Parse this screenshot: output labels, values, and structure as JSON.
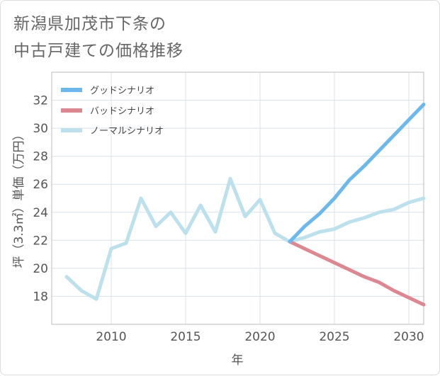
{
  "title": "新潟県加茂市下条の\n中古戸建ての価格推移",
  "chart_data": {
    "type": "line",
    "xlabel": "年",
    "ylabel": "坪（3.3㎡）単価（万円）",
    "xlim": [
      2006,
      2031
    ],
    "ylim": [
      16,
      34
    ],
    "x_ticks": [
      2010,
      2015,
      2020,
      2025,
      2030
    ],
    "y_ticks": [
      18,
      20,
      22,
      24,
      26,
      28,
      30,
      32
    ],
    "grid": true,
    "legend_position": "top-left",
    "series": [
      {
        "name": "グッドシナリオ",
        "color": "#6cb8ec",
        "x": [
          2022,
          2023,
          2024,
          2025,
          2026,
          2027,
          2028,
          2029,
          2030,
          2031
        ],
        "y": [
          21.9,
          23.0,
          23.9,
          25.0,
          26.3,
          27.3,
          28.4,
          29.5,
          30.6,
          31.7
        ]
      },
      {
        "name": "バッドシナリオ",
        "color": "#dd8891",
        "x": [
          2022,
          2023,
          2024,
          2025,
          2026,
          2027,
          2028,
          2029,
          2030,
          2031
        ],
        "y": [
          21.9,
          21.4,
          20.9,
          20.4,
          19.9,
          19.4,
          19.0,
          18.4,
          17.9,
          17.4
        ]
      },
      {
        "name": "ノーマルシナリオ",
        "color": "#bde0ed",
        "x": [
          2007,
          2008,
          2009,
          2010,
          2011,
          2012,
          2013,
          2014,
          2015,
          2016,
          2017,
          2018,
          2019,
          2020,
          2021,
          2022,
          2023,
          2024,
          2025,
          2026,
          2027,
          2028,
          2029,
          2030,
          2031
        ],
        "y": [
          19.4,
          18.4,
          17.8,
          21.4,
          21.8,
          25.0,
          23.0,
          24.0,
          22.5,
          24.5,
          22.6,
          26.4,
          23.7,
          24.9,
          22.5,
          21.9,
          22.2,
          22.6,
          22.8,
          23.3,
          23.6,
          24.0,
          24.2,
          24.7,
          25.0
        ]
      }
    ]
  }
}
